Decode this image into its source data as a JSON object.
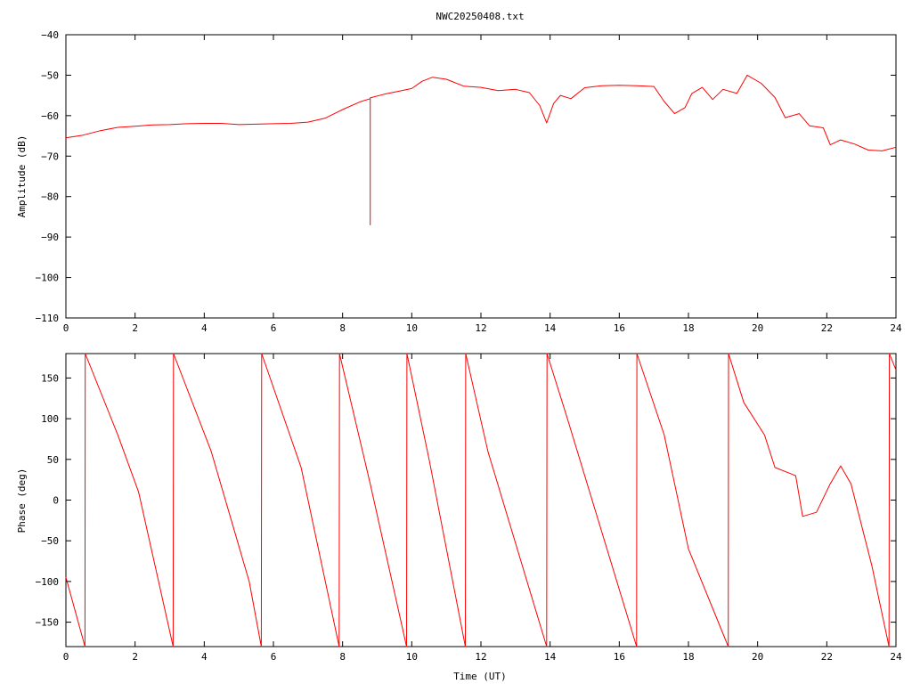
{
  "chart_data": [
    {
      "type": "line",
      "title": "NWC20250408.txt",
      "xlabel": "",
      "ylabel": "Amplitude (dB)",
      "xlim": [
        0,
        24
      ],
      "ylim": [
        -110,
        -40
      ],
      "xticks": [
        0,
        2,
        4,
        6,
        8,
        10,
        12,
        14,
        16,
        18,
        20,
        22,
        24
      ],
      "yticks": [
        -110,
        -100,
        -90,
        -80,
        -70,
        -60,
        -50,
        -40
      ],
      "grid": false,
      "series": [
        {
          "color": "#ff0000",
          "x": [
            0,
            0.5,
            1,
            1.5,
            2,
            2.5,
            3,
            3.5,
            4,
            4.5,
            5,
            5.5,
            6,
            6.5,
            7,
            7.5,
            8,
            8.5,
            8.8,
            8.8,
            8.8,
            9.2,
            9.6,
            10,
            10.3,
            10.6,
            11,
            11.5,
            12,
            12.5,
            13,
            13.4,
            13.7,
            13.9,
            14.1,
            14.3,
            14.6,
            15,
            15.5,
            16,
            16.5,
            17,
            17.3,
            17.6,
            17.9,
            18.1,
            18.4,
            18.7,
            19,
            19.4,
            19.7,
            20.1,
            20.5,
            20.8,
            21.2,
            21.5,
            21.9,
            22.1,
            22.4,
            22.8,
            23.2,
            23.6,
            24
          ],
          "y": [
            -65.5,
            -64.8,
            -63.7,
            -62.9,
            -62.6,
            -62.3,
            -62.2,
            -62.0,
            -61.9,
            -61.9,
            -62.2,
            -62.1,
            -62.0,
            -61.9,
            -61.6,
            -60.6,
            -58.5,
            -56.6,
            -55.8,
            -87.0,
            -55.6,
            -54.7,
            -54.0,
            -53.3,
            -51.5,
            -50.5,
            -51.0,
            -52.7,
            -53.0,
            -53.8,
            -53.5,
            -54.3,
            -57.5,
            -61.8,
            -57.0,
            -55.0,
            -55.8,
            -53.1,
            -52.6,
            -52.5,
            -52.6,
            -52.8,
            -56.5,
            -59.5,
            -58.0,
            -54.5,
            -53.0,
            -56.0,
            -53.5,
            -54.5,
            -50.0,
            -52.0,
            -55.5,
            -60.5,
            -59.5,
            -62.5,
            -63.0,
            -67.2,
            -66.0,
            -67.0,
            -68.5,
            -68.7,
            -67.8
          ]
        }
      ]
    },
    {
      "type": "line",
      "title": "",
      "xlabel": "Time (UT)",
      "ylabel": "Phase (deg)",
      "xlim": [
        0,
        24
      ],
      "ylim": [
        -180,
        180
      ],
      "xticks": [
        0,
        2,
        4,
        6,
        8,
        10,
        12,
        14,
        16,
        18,
        20,
        22,
        24
      ],
      "yticks": [
        -150,
        -100,
        -50,
        0,
        50,
        100,
        150
      ],
      "grid": false,
      "series": [
        {
          "color": "#ff0000",
          "x": [
            0,
            0.55,
            0.55,
            0.56,
            1.5,
            2.1,
            3.1,
            3.1,
            3.11,
            4.2,
            5.3,
            5.65,
            5.65,
            5.66,
            6.8,
            7.9,
            7.9,
            7.91,
            8.8,
            9.85,
            9.85,
            9.86,
            10.5,
            11.55,
            11.55,
            11.56,
            12.2,
            13.9,
            13.9,
            13.91,
            14.5,
            16.5,
            16.5,
            16.51,
            17.3,
            18.0,
            19.15,
            19.15,
            19.16,
            19.6,
            20.2,
            20.5,
            21.1,
            21.3,
            21.7,
            22.1,
            22.4,
            22.7,
            23.3,
            23.8,
            23.8,
            23.81,
            24
          ],
          "y": [
            -95,
            -180,
            -180,
            180,
            80,
            10,
            -180,
            -180,
            180,
            60,
            -100,
            -180,
            -180,
            180,
            40,
            -180,
            -180,
            180,
            20,
            -180,
            -180,
            180,
            50,
            -180,
            -180,
            180,
            60,
            -180,
            -180,
            180,
            100,
            -180,
            -180,
            180,
            80,
            -60,
            -180,
            -180,
            180,
            120,
            80,
            40,
            30,
            -20,
            -15,
            20,
            42,
            20,
            -80,
            -180,
            -180,
            180,
            160
          ]
        }
      ]
    }
  ]
}
